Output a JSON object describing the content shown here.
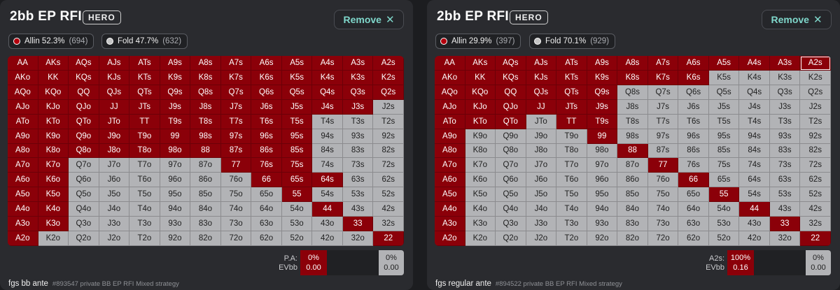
{
  "hands": [
    [
      "AA",
      "AKs",
      "AQs",
      "AJs",
      "ATs",
      "A9s",
      "A8s",
      "A7s",
      "A6s",
      "A5s",
      "A4s",
      "A3s",
      "A2s"
    ],
    [
      "AKo",
      "KK",
      "KQs",
      "KJs",
      "KTs",
      "K9s",
      "K8s",
      "K7s",
      "K6s",
      "K5s",
      "K4s",
      "K3s",
      "K2s"
    ],
    [
      "AQo",
      "KQo",
      "QQ",
      "QJs",
      "QTs",
      "Q9s",
      "Q8s",
      "Q7s",
      "Q6s",
      "Q5s",
      "Q4s",
      "Q3s",
      "Q2s"
    ],
    [
      "AJo",
      "KJo",
      "QJo",
      "JJ",
      "JTs",
      "J9s",
      "J8s",
      "J7s",
      "J6s",
      "J5s",
      "J4s",
      "J3s",
      "J2s"
    ],
    [
      "ATo",
      "KTo",
      "QTo",
      "JTo",
      "TT",
      "T9s",
      "T8s",
      "T7s",
      "T6s",
      "T5s",
      "T4s",
      "T3s",
      "T2s"
    ],
    [
      "A9o",
      "K9o",
      "Q9o",
      "J9o",
      "T9o",
      "99",
      "98s",
      "97s",
      "96s",
      "95s",
      "94s",
      "93s",
      "92s"
    ],
    [
      "A8o",
      "K8o",
      "Q8o",
      "J8o",
      "T8o",
      "98o",
      "88",
      "87s",
      "86s",
      "85s",
      "84s",
      "83s",
      "82s"
    ],
    [
      "A7o",
      "K7o",
      "Q7o",
      "J7o",
      "T7o",
      "97o",
      "87o",
      "77",
      "76s",
      "75s",
      "74s",
      "73s",
      "72s"
    ],
    [
      "A6o",
      "K6o",
      "Q6o",
      "J6o",
      "T6o",
      "96o",
      "86o",
      "76o",
      "66",
      "65s",
      "64s",
      "63s",
      "62s"
    ],
    [
      "A5o",
      "K5o",
      "Q5o",
      "J5o",
      "T5o",
      "95o",
      "85o",
      "75o",
      "65o",
      "55",
      "54s",
      "53s",
      "52s"
    ],
    [
      "A4o",
      "K4o",
      "Q4o",
      "J4o",
      "T4o",
      "94o",
      "84o",
      "74o",
      "64o",
      "54o",
      "44",
      "43s",
      "42s"
    ],
    [
      "A3o",
      "K3o",
      "Q3o",
      "J3o",
      "T3o",
      "93o",
      "83o",
      "73o",
      "63o",
      "53o",
      "43o",
      "33",
      "32s"
    ],
    [
      "A2o",
      "K2o",
      "Q2o",
      "J2o",
      "T2o",
      "92o",
      "82o",
      "72o",
      "62o",
      "52o",
      "42o",
      "32o",
      "22"
    ]
  ],
  "panels": [
    {
      "title": "2bb EP RFI",
      "badge": "HERO",
      "remove_label": "Remove",
      "allin_label": "Allin 52.3%",
      "allin_count": "(694)",
      "fold_label": "Fold 47.7%",
      "fold_count": "(632)",
      "allin_color": "#8b0009",
      "fold_color": "#b2b3b6",
      "allin_hands": [
        "AA",
        "AKs",
        "AQs",
        "AJs",
        "ATs",
        "A9s",
        "A8s",
        "A7s",
        "A6s",
        "A5s",
        "A4s",
        "A3s",
        "A2s",
        "AKo",
        "KK",
        "KQs",
        "KJs",
        "KTs",
        "K9s",
        "K8s",
        "K7s",
        "K6s",
        "K5s",
        "K4s",
        "K3s",
        "K2s",
        "AQo",
        "KQo",
        "QQ",
        "QJs",
        "QTs",
        "Q9s",
        "Q8s",
        "Q7s",
        "Q6s",
        "Q5s",
        "Q4s",
        "Q3s",
        "Q2s",
        "AJo",
        "KJo",
        "QJo",
        "JJ",
        "JTs",
        "J9s",
        "J8s",
        "J7s",
        "J6s",
        "J5s",
        "J4s",
        "J3s",
        "ATo",
        "KTo",
        "QTo",
        "JTo",
        "TT",
        "T9s",
        "T8s",
        "T7s",
        "T6s",
        "T5s",
        "A9o",
        "K9o",
        "Q9o",
        "J9o",
        "T9o",
        "99",
        "98s",
        "97s",
        "96s",
        "95s",
        "A8o",
        "K8o",
        "Q8o",
        "J8o",
        "T8o",
        "98o",
        "88",
        "87s",
        "86s",
        "85s",
        "A7o",
        "K7o",
        "77",
        "76s",
        "75s",
        "A6o",
        "K6o",
        "66",
        "65s",
        "64s",
        "A5o",
        "K5o",
        "55",
        "A4o",
        "K4o",
        "44",
        "A3o",
        "K3o",
        "33",
        "A2o",
        "22"
      ],
      "highlight": "",
      "stat_label_1": "P.A:",
      "stat_label_2": "EVbb",
      "red_pct": "0%",
      "red_ev": "0.00",
      "grey_pct": "0%",
      "grey_ev": "0.00",
      "footer_title": "fgs bb ante",
      "footer_sub": "#893547 private BB EP RFI Mixed strategy"
    },
    {
      "title": "2bb EP RFI",
      "badge": "HERO",
      "remove_label": "Remove",
      "allin_label": "Allin 29.9%",
      "allin_count": "(397)",
      "fold_label": "Fold 70.1%",
      "fold_count": "(929)",
      "allin_color": "#8b0009",
      "fold_color": "#b2b3b6",
      "allin_hands": [
        "AA",
        "AKs",
        "AQs",
        "AJs",
        "ATs",
        "A9s",
        "A8s",
        "A7s",
        "A6s",
        "A5s",
        "A4s",
        "A3s",
        "A2s",
        "AKo",
        "KK",
        "KQs",
        "KJs",
        "KTs",
        "K9s",
        "K8s",
        "K7s",
        "K6s",
        "AQo",
        "KQo",
        "QQ",
        "QJs",
        "QTs",
        "Q9s",
        "AJo",
        "KJo",
        "QJo",
        "JJ",
        "JTs",
        "J9s",
        "ATo",
        "KTo",
        "QTo",
        "TT",
        "T9s",
        "A9o",
        "99",
        "A8o",
        "88",
        "A7o",
        "77",
        "A6o",
        "66",
        "A5o",
        "55",
        "A4o",
        "44",
        "A3o",
        "33",
        "A2o",
        "22"
      ],
      "highlight": "A2s",
      "stat_label_1": "A2s:",
      "stat_label_2": "EVbb",
      "red_pct": "100%",
      "red_ev": "0.16",
      "grey_pct": "0%",
      "grey_ev": "0.00",
      "footer_title": "fgs regular ante",
      "footer_sub": "#894522 private BB EP RFI Mixed strategy"
    }
  ]
}
